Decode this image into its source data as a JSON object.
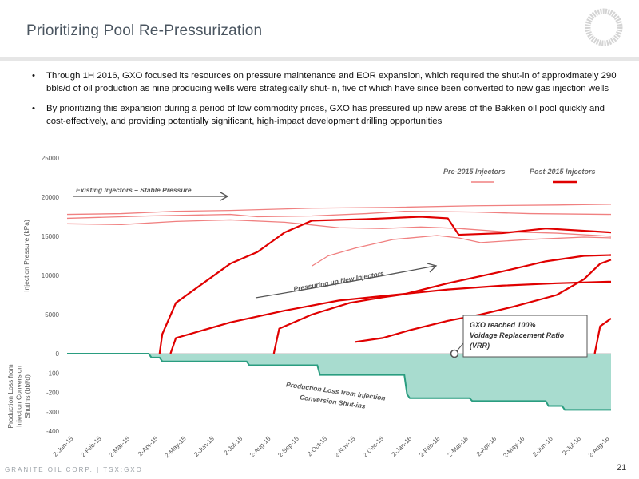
{
  "slide": {
    "title": "Prioritizing Pool Re-Pressurization",
    "bullets": [
      "Through 1H 2016, GXO focused its resources on pressure maintenance and EOR expansion, which required the shut-in of approximately 290 bbls/d of oil production as nine producing wells were strategically shut-in, five of which have since been converted to new gas injection wells",
      "By prioritizing this expansion during a period of low commodity prices, GXO has pressured up new areas of the Bakken oil pool quickly and cost-effectively, and providing potentially significant, high-impact development drilling opportunities"
    ],
    "bullet_symbol": "•",
    "footer": "GRANITE OIL CORP. | TSX:GXO",
    "page_number": "21",
    "colors": {
      "title": "#4a5560",
      "pre2015": "#f08080",
      "post2015": "#e00000",
      "loss_fill": "#a8dccf",
      "loss_line": "#2a9d80"
    }
  },
  "chart_data": [
    {
      "type": "line",
      "ylabel": "Injection Pressure (kPa)",
      "ylim": [
        0,
        25000
      ],
      "yticks": [
        "0",
        "5000",
        "10000",
        "15000",
        "20000",
        "25000"
      ],
      "x_start": "2015-06-02",
      "x_end": "2016-08-25",
      "xticks": [
        "2-Jun-15",
        "2-Feb-15",
        "2-Mar-15",
        "2-Apr-15",
        "2-May-15",
        "2-Jun-15",
        "2-Jul-15",
        "2-Aug-15",
        "2-Sep-15",
        "2-Oct-15",
        "2-Nov-15",
        "2-Dec-15",
        "2-Jan-16",
        "2-Feb-16",
        "2-Mar-16",
        "2-Apr-16",
        "2-May-16",
        "2-Jun-16",
        "2-Jul-16",
        "2-Aug-16"
      ],
      "legend": [
        "Pre-2015 Injectors",
        "Post-2015 Injectors"
      ],
      "legend_position": "top-right",
      "annotations": [
        "Existing Injectors – Stable Pressure",
        "Pressuring up New Injectors",
        "GXO reached 100%",
        "Voidage Replacement Ratio",
        "(VRR)"
      ],
      "series": [
        {
          "group": "Pre-2015",
          "points": [
            [
              0,
              17800
            ],
            [
              0.1,
              17900
            ],
            [
              0.2,
              18200
            ],
            [
              0.3,
              18300
            ],
            [
              0.45,
              18600
            ],
            [
              0.6,
              18700
            ],
            [
              0.75,
              18900
            ],
            [
              0.9,
              19000
            ],
            [
              1,
              19100
            ]
          ]
        },
        {
          "group": "Pre-2015",
          "points": [
            [
              0,
              17300
            ],
            [
              0.15,
              17600
            ],
            [
              0.3,
              17800
            ],
            [
              0.35,
              17500
            ],
            [
              0.45,
              17600
            ],
            [
              0.55,
              17900
            ],
            [
              0.62,
              18200
            ],
            [
              0.75,
              18100
            ],
            [
              0.85,
              17900
            ],
            [
              1,
              17800
            ]
          ]
        },
        {
          "group": "Pre-2015",
          "points": [
            [
              0,
              16600
            ],
            [
              0.1,
              16500
            ],
            [
              0.2,
              16900
            ],
            [
              0.3,
              17100
            ],
            [
              0.4,
              16800
            ],
            [
              0.5,
              16100
            ],
            [
              0.58,
              16000
            ],
            [
              0.65,
              16200
            ],
            [
              0.72,
              16000
            ],
            [
              0.8,
              15600
            ],
            [
              0.9,
              15400
            ],
            [
              1,
              15000
            ]
          ]
        },
        {
          "group": "Pre-2015",
          "points": [
            [
              0.45,
              11200
            ],
            [
              0.48,
              12500
            ],
            [
              0.53,
              13500
            ],
            [
              0.6,
              14600
            ],
            [
              0.68,
              15100
            ],
            [
              0.72,
              14800
            ],
            [
              0.76,
              14200
            ],
            [
              0.85,
              14600
            ],
            [
              0.95,
              14900
            ],
            [
              1,
              14800
            ]
          ]
        },
        {
          "group": "Post-2015",
          "points": [
            [
              0.17,
              0
            ],
            [
              0.175,
              2500
            ],
            [
              0.2,
              6500
            ],
            [
              0.25,
              9000
            ],
            [
              0.3,
              11500
            ],
            [
              0.35,
              13000
            ],
            [
              0.4,
              15500
            ],
            [
              0.45,
              17000
            ],
            [
              0.55,
              17200
            ],
            [
              0.65,
              17500
            ],
            [
              0.7,
              17300
            ],
            [
              0.72,
              15200
            ],
            [
              0.8,
              15400
            ],
            [
              0.88,
              16000
            ],
            [
              1,
              15500
            ]
          ]
        },
        {
          "group": "Post-2015",
          "points": [
            [
              0.19,
              0
            ],
            [
              0.2,
              2000
            ],
            [
              0.3,
              4000
            ],
            [
              0.4,
              5500
            ],
            [
              0.5,
              6800
            ],
            [
              0.6,
              7500
            ],
            [
              0.7,
              8200
            ],
            [
              0.8,
              8700
            ],
            [
              0.9,
              9000
            ],
            [
              1,
              9200
            ]
          ]
        },
        {
          "group": "Post-2015",
          "points": [
            [
              0.38,
              0
            ],
            [
              0.39,
              3200
            ],
            [
              0.45,
              5000
            ],
            [
              0.52,
              6500
            ],
            [
              0.58,
              7200
            ],
            [
              0.62,
              7600
            ],
            [
              0.7,
              9000
            ],
            [
              0.8,
              10500
            ],
            [
              0.88,
              11800
            ],
            [
              0.95,
              12500
            ],
            [
              1,
              12600
            ]
          ]
        },
        {
          "group": "Post-2015",
          "points": [
            [
              0.53,
              1500
            ],
            [
              0.58,
              2000
            ],
            [
              0.63,
              3000
            ],
            [
              0.7,
              4200
            ],
            [
              0.76,
              5000
            ],
            [
              0.82,
              6000
            ],
            [
              0.9,
              7500
            ],
            [
              0.95,
              9500
            ],
            [
              0.98,
              11500
            ],
            [
              1,
              12000
            ]
          ]
        },
        {
          "group": "Post-2015",
          "points": [
            [
              0.97,
              0
            ],
            [
              0.98,
              3500
            ],
            [
              1,
              4500
            ]
          ]
        }
      ]
    },
    {
      "type": "area",
      "ylabel": "Production Loss from Injection Conversion Shutins (bbl/d)",
      "ylim": [
        -400,
        0
      ],
      "yticks": [
        "0",
        "-100",
        "-200",
        "-300",
        "-400"
      ],
      "annotations": [
        "Production Loss from Injection",
        "Conversion Shut-ins"
      ],
      "series": [
        {
          "name": "Production Loss",
          "points": [
            [
              0,
              0
            ],
            [
              0.15,
              0
            ],
            [
              0.155,
              -20
            ],
            [
              0.17,
              -20
            ],
            [
              0.175,
              -40
            ],
            [
              0.33,
              -40
            ],
            [
              0.335,
              -60
            ],
            [
              0.46,
              -60
            ],
            [
              0.465,
              -110
            ],
            [
              0.62,
              -110
            ],
            [
              0.625,
              -210
            ],
            [
              0.63,
              -230
            ],
            [
              0.74,
              -230
            ],
            [
              0.745,
              -245
            ],
            [
              0.88,
              -245
            ],
            [
              0.885,
              -270
            ],
            [
              0.91,
              -270
            ],
            [
              0.915,
              -290
            ],
            [
              1,
              -290
            ]
          ]
        }
      ]
    }
  ]
}
